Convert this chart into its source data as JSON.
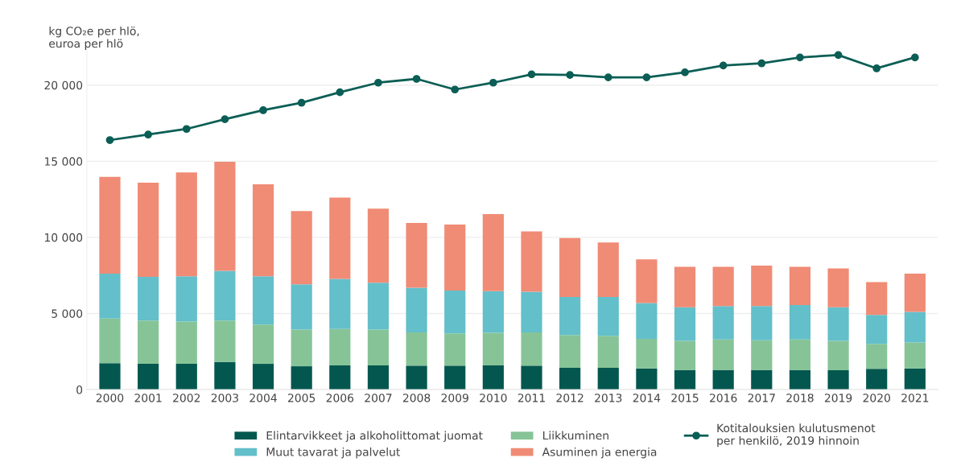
{
  "chart_data": {
    "type": "bar",
    "stacked": true,
    "ylabel": "kg CO₂e per hlö,\neuroa per hlö",
    "categories": [
      "2000",
      "2001",
      "2002",
      "2003",
      "2004",
      "2005",
      "2006",
      "2007",
      "2008",
      "2009",
      "2010",
      "2011",
      "2012",
      "2013",
      "2014",
      "2015",
      "2016",
      "2017",
      "2018",
      "2019",
      "2020",
      "2021"
    ],
    "series": [
      {
        "name": "Elintarvikkeet ja alkoholittomat juomat",
        "color": "#03574f",
        "values": [
          1730,
          1690,
          1690,
          1820,
          1690,
          1530,
          1590,
          1590,
          1570,
          1570,
          1590,
          1570,
          1430,
          1430,
          1390,
          1290,
          1290,
          1290,
          1290,
          1270,
          1370,
          1390
        ]
      },
      {
        "name": "Liikkuminen",
        "color": "#86c497",
        "values": [
          2940,
          2840,
          2780,
          2710,
          2580,
          2410,
          2390,
          2350,
          2180,
          2120,
          2140,
          2180,
          2160,
          2100,
          1940,
          1910,
          2000,
          1950,
          2000,
          1930,
          1630,
          1710
        ]
      },
      {
        "name": "Muut tavarat ja palvelut",
        "color": "#63bfca",
        "values": [
          2940,
          2880,
          2980,
          3270,
          3180,
          2980,
          3290,
          3080,
          2940,
          2820,
          2740,
          2680,
          2490,
          2550,
          2360,
          2210,
          2200,
          2250,
          2260,
          2210,
          1900,
          2000
        ]
      },
      {
        "name": "Asuminen ja energia",
        "color": "#f08b75",
        "values": [
          6370,
          6180,
          6820,
          7160,
          6040,
          4810,
          5340,
          4860,
          4250,
          4330,
          5060,
          3960,
          3880,
          3590,
          2860,
          2650,
          2570,
          2650,
          2510,
          2550,
          2160,
          2510
        ]
      },
      {
        "name": "Kotitalouksien kulutusmenot\nper henkilö, 2019 hinnoin",
        "type": "line",
        "color": "#0b5e55",
        "marker": "circle",
        "values": [
          16390,
          16750,
          17120,
          17760,
          18350,
          18840,
          19530,
          20160,
          20410,
          19710,
          20160,
          20710,
          20670,
          20510,
          20510,
          20840,
          21290,
          21430,
          21820,
          21980,
          21100,
          21820
        ]
      }
    ],
    "ylim": [
      0,
      22500
    ],
    "yticks": [
      0,
      {
        "value": 5000,
        "label": "5 000"
      },
      {
        "value": 10000,
        "label": "10 000"
      },
      {
        "value": 15000,
        "label": "15 000"
      },
      {
        "value": 20000,
        "label": "20 000"
      }
    ],
    "grid": "y",
    "legend": "bottom"
  }
}
